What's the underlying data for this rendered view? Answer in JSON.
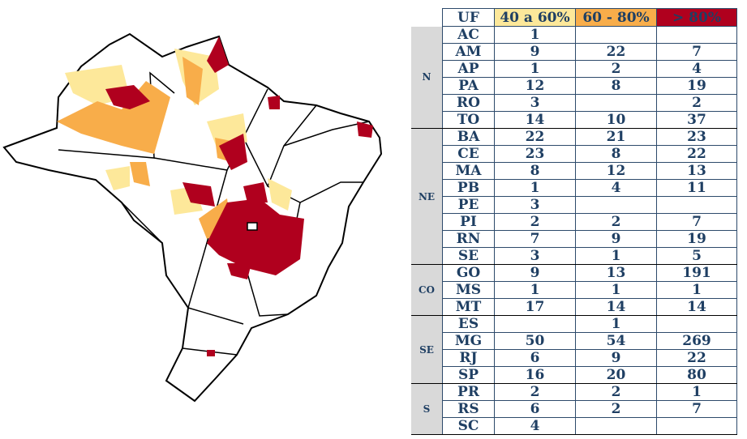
{
  "legend_colors": {
    "40 a 60%": "#fde89a",
    "60 - 80%": "#f8ad4a",
    "> 80%": "#b0001e"
  },
  "table": {
    "headers": [
      "UF",
      "40 a 60%",
      "60 - 80%",
      "> 80%"
    ],
    "regions": [
      {
        "name": "N",
        "rows": [
          {
            "uf": "AC",
            "v1": "1",
            "v2": "",
            "v3": ""
          },
          {
            "uf": "AM",
            "v1": "9",
            "v2": "22",
            "v3": "7"
          },
          {
            "uf": "AP",
            "v1": "1",
            "v2": "2",
            "v3": "4"
          },
          {
            "uf": "PA",
            "v1": "12",
            "v2": "8",
            "v3": "19"
          },
          {
            "uf": "RO",
            "v1": "3",
            "v2": "",
            "v3": "2"
          },
          {
            "uf": "TO",
            "v1": "14",
            "v2": "10",
            "v3": "37"
          }
        ]
      },
      {
        "name": "NE",
        "rows": [
          {
            "uf": "BA",
            "v1": "22",
            "v2": "21",
            "v3": "23"
          },
          {
            "uf": "CE",
            "v1": "23",
            "v2": "8",
            "v3": "22"
          },
          {
            "uf": "MA",
            "v1": "8",
            "v2": "12",
            "v3": "13"
          },
          {
            "uf": "PB",
            "v1": "1",
            "v2": "4",
            "v3": "11"
          },
          {
            "uf": "PE",
            "v1": "3",
            "v2": "",
            "v3": ""
          },
          {
            "uf": "PI",
            "v1": "2",
            "v2": "2",
            "v3": "7"
          },
          {
            "uf": "RN",
            "v1": "7",
            "v2": "9",
            "v3": "19"
          },
          {
            "uf": "SE",
            "v1": "3",
            "v2": "1",
            "v3": "5"
          }
        ]
      },
      {
        "name": "CO",
        "rows": [
          {
            "uf": "GO",
            "v1": "9",
            "v2": "13",
            "v3": "191"
          },
          {
            "uf": "MS",
            "v1": "1",
            "v2": "1",
            "v3": "1"
          },
          {
            "uf": "MT",
            "v1": "17",
            "v2": "14",
            "v3": "14"
          }
        ]
      },
      {
        "name": "SE",
        "rows": [
          {
            "uf": "ES",
            "v1": "",
            "v2": "1",
            "v3": ""
          },
          {
            "uf": "MG",
            "v1": "50",
            "v2": "54",
            "v3": "269"
          },
          {
            "uf": "RJ",
            "v1": "6",
            "v2": "9",
            "v3": "22"
          },
          {
            "uf": "SP",
            "v1": "16",
            "v2": "20",
            "v3": "80"
          }
        ]
      },
      {
        "name": "S",
        "rows": [
          {
            "uf": "PR",
            "v1": "2",
            "v2": "2",
            "v3": "1"
          },
          {
            "uf": "RS",
            "v1": "6",
            "v2": "2",
            "v3": "7"
          },
          {
            "uf": "SC",
            "v1": "4",
            "v2": "",
            "v3": ""
          }
        ]
      }
    ]
  }
}
